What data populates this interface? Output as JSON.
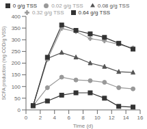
{
  "chart_data": {
    "type": "line",
    "xlabel": "Time (d)",
    "ylabel": "SCFA production (mg COD/g VSS)",
    "x": [
      1,
      3,
      5,
      7,
      9,
      11,
      13,
      15
    ],
    "xlim": [
      0,
      16
    ],
    "ylim": [
      0,
      400
    ],
    "xticks": [
      0,
      2,
      4,
      6,
      8,
      10,
      12,
      14,
      16
    ],
    "yticks": [
      0,
      50,
      100,
      150,
      200,
      250,
      300,
      350,
      400
    ],
    "grid": false,
    "legend": "top",
    "series": [
      {
        "name": "0 g/g TSS",
        "color": "#333333",
        "marker": "square",
        "values": [
          18,
          38,
          63,
          73,
          73,
          50,
          15,
          12
        ]
      },
      {
        "name": "0.02 g/g TSS",
        "color": "#999999",
        "marker": "circle",
        "values": [
          18,
          95,
          140,
          128,
          125,
          118,
          95,
          90
        ]
      },
      {
        "name": "0.08 g/g TSS",
        "color": "#555555",
        "marker": "triangle",
        "values": [
          18,
          220,
          245,
          225,
          200,
          185,
          163,
          160
        ]
      },
      {
        "name": "0.32 g/g TSS",
        "color": "#999999",
        "marker": "plus",
        "values": [
          18,
          215,
          348,
          335,
          305,
          295,
          280,
          265
        ]
      },
      {
        "name": "0.64 g/g TSS",
        "color": "#333333",
        "marker": "square",
        "values": [
          18,
          225,
          363,
          340,
          325,
          310,
          285,
          260
        ]
      }
    ]
  }
}
